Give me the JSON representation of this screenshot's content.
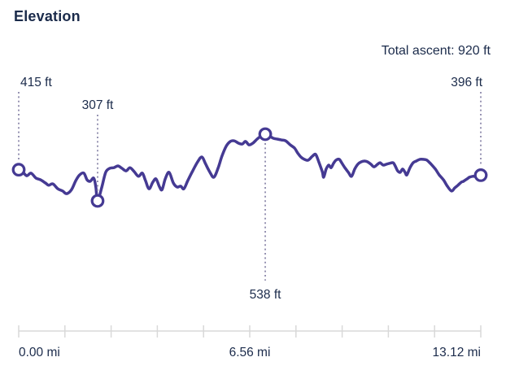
{
  "header": {
    "title": "Elevation",
    "total_ascent": "Total ascent: 920 ft"
  },
  "colors": {
    "line": "#453a93",
    "marker_fill": "#ffffff",
    "dotted_leader": "#8d89ab",
    "axis": "#d9d9d9",
    "text": "#1b2b4b"
  },
  "chart_data": {
    "type": "line",
    "title": "Elevation",
    "x_unit": "mi",
    "y_unit": "ft",
    "x_range_mi": [
      0,
      13.12
    ],
    "total_ascent_ft": 920,
    "grid": false,
    "axis_tick_count": 11,
    "x_tick_labels": [
      {
        "label": "0.00 mi",
        "mi": 0.0,
        "align": "start"
      },
      {
        "label": "6.56 mi",
        "mi": 6.56,
        "align": "middle"
      },
      {
        "label": "13.12 mi",
        "mi": 13.12,
        "align": "end"
      }
    ],
    "annotations": [
      {
        "id": "start",
        "mi": 0.0,
        "ft": 415,
        "label": "415 ft",
        "placement": "above",
        "anchor": "start"
      },
      {
        "id": "low",
        "mi": 2.24,
        "ft": 307,
        "label": "307 ft",
        "placement": "above",
        "anchor": "middle"
      },
      {
        "id": "peak",
        "mi": 7.0,
        "ft": 538,
        "label": "538 ft",
        "placement": "below",
        "anchor": "middle"
      },
      {
        "id": "end",
        "mi": 13.12,
        "ft": 396,
        "label": "396 ft",
        "placement": "above",
        "anchor": "end"
      }
    ],
    "series": [
      {
        "name": "elevation-profile",
        "points_mi_ft": [
          [
            0,
            415
          ],
          [
            0.12,
            406
          ],
          [
            0.23,
            394
          ],
          [
            0.35,
            403
          ],
          [
            0.49,
            386
          ],
          [
            0.62,
            380
          ],
          [
            0.76,
            369
          ],
          [
            0.85,
            361
          ],
          [
            0.97,
            366
          ],
          [
            1.11,
            349
          ],
          [
            1.25,
            341
          ],
          [
            1.36,
            332
          ],
          [
            1.5,
            346
          ],
          [
            1.62,
            377
          ],
          [
            1.73,
            397
          ],
          [
            1.85,
            403
          ],
          [
            1.94,
            380
          ],
          [
            2.03,
            375
          ],
          [
            2.13,
            386
          ],
          [
            2.19,
            355
          ],
          [
            2.24,
            307
          ],
          [
            2.36,
            355
          ],
          [
            2.47,
            406
          ],
          [
            2.59,
            420
          ],
          [
            2.7,
            422
          ],
          [
            2.82,
            428
          ],
          [
            2.93,
            420
          ],
          [
            3.05,
            411
          ],
          [
            3.16,
            422
          ],
          [
            3.28,
            408
          ],
          [
            3.4,
            392
          ],
          [
            3.51,
            403
          ],
          [
            3.6,
            377
          ],
          [
            3.7,
            349
          ],
          [
            3.81,
            372
          ],
          [
            3.9,
            383
          ],
          [
            4,
            355
          ],
          [
            4.07,
            346
          ],
          [
            4.16,
            383
          ],
          [
            4.27,
            406
          ],
          [
            4.39,
            369
          ],
          [
            4.5,
            355
          ],
          [
            4.6,
            358
          ],
          [
            4.69,
            349
          ],
          [
            4.8,
            377
          ],
          [
            4.94,
            411
          ],
          [
            5.08,
            442
          ],
          [
            5.2,
            459
          ],
          [
            5.31,
            434
          ],
          [
            5.43,
            406
          ],
          [
            5.54,
            389
          ],
          [
            5.66,
            420
          ],
          [
            5.77,
            462
          ],
          [
            5.89,
            496
          ],
          [
            6.01,
            513
          ],
          [
            6.12,
            515
          ],
          [
            6.24,
            507
          ],
          [
            6.35,
            504
          ],
          [
            6.44,
            513
          ],
          [
            6.54,
            501
          ],
          [
            6.65,
            507
          ],
          [
            6.77,
            521
          ],
          [
            6.88,
            532
          ],
          [
            7,
            538
          ],
          [
            7.11,
            532
          ],
          [
            7.23,
            524
          ],
          [
            7.34,
            521
          ],
          [
            7.46,
            518
          ],
          [
            7.58,
            515
          ],
          [
            7.71,
            501
          ],
          [
            7.83,
            490
          ],
          [
            7.92,
            473
          ],
          [
            8.01,
            459
          ],
          [
            8.11,
            451
          ],
          [
            8.22,
            448
          ],
          [
            8.34,
            462
          ],
          [
            8.43,
            468
          ],
          [
            8.52,
            442
          ],
          [
            8.62,
            408
          ],
          [
            8.66,
            389
          ],
          [
            8.73,
            417
          ],
          [
            8.8,
            431
          ],
          [
            8.87,
            422
          ],
          [
            8.94,
            437
          ],
          [
            9.01,
            448
          ],
          [
            9.1,
            451
          ],
          [
            9.17,
            439
          ],
          [
            9.26,
            422
          ],
          [
            9.36,
            406
          ],
          [
            9.45,
            392
          ],
          [
            9.54,
            417
          ],
          [
            9.63,
            434
          ],
          [
            9.72,
            442
          ],
          [
            9.82,
            445
          ],
          [
            9.91,
            442
          ],
          [
            10,
            434
          ],
          [
            10.09,
            425
          ],
          [
            10.19,
            434
          ],
          [
            10.26,
            439
          ],
          [
            10.35,
            431
          ],
          [
            10.44,
            434
          ],
          [
            10.53,
            437
          ],
          [
            10.63,
            439
          ],
          [
            10.69,
            428
          ],
          [
            10.76,
            411
          ],
          [
            10.83,
            406
          ],
          [
            10.9,
            417
          ],
          [
            10.97,
            406
          ],
          [
            11.02,
            397
          ],
          [
            11.11,
            422
          ],
          [
            11.2,
            439
          ],
          [
            11.29,
            445
          ],
          [
            11.39,
            451
          ],
          [
            11.48,
            451
          ],
          [
            11.59,
            448
          ],
          [
            11.71,
            434
          ],
          [
            11.83,
            417
          ],
          [
            11.94,
            397
          ],
          [
            12.06,
            380
          ],
          [
            12.17,
            358
          ],
          [
            12.29,
            341
          ],
          [
            12.38,
            352
          ],
          [
            12.47,
            361
          ],
          [
            12.57,
            372
          ],
          [
            12.63,
            375
          ],
          [
            12.73,
            383
          ],
          [
            12.8,
            389
          ],
          [
            12.89,
            392
          ],
          [
            12.98,
            392
          ],
          [
            13.05,
            396
          ],
          [
            13.12,
            396
          ]
        ]
      }
    ]
  }
}
